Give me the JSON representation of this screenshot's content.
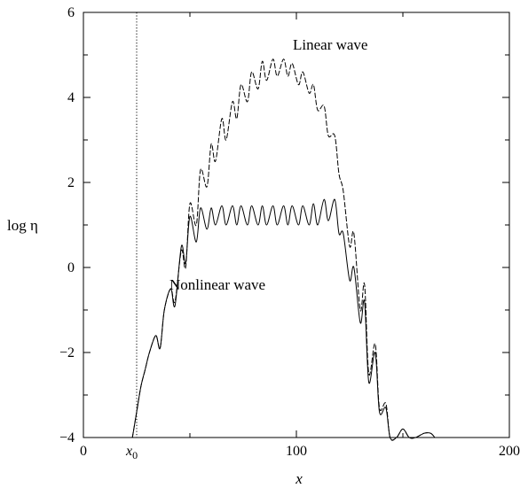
{
  "chart_data": {
    "type": "line",
    "title": "",
    "xlabel": "x",
    "ylabel": "log η",
    "xlim": [
      0,
      200
    ],
    "ylim": [
      -4,
      6
    ],
    "xticks": [
      "0",
      "100",
      "200"
    ],
    "yticks": [
      "−4",
      "−2",
      "0",
      "2",
      "4",
      "6"
    ],
    "x0_marker": {
      "label": "x",
      "subscript": "0",
      "x": 25
    },
    "grid": false,
    "legend": "none",
    "annotations": [
      {
        "text": "Linear wave",
        "series": "linear"
      },
      {
        "text": "Nonlinear wave",
        "series": "nonlinear"
      }
    ],
    "series": [
      {
        "id": "linear",
        "style": "dashed",
        "color": "#000000",
        "x": [
          23,
          25,
          27,
          29,
          31,
          34,
          36,
          38,
          41,
          43,
          46,
          48,
          50,
          53,
          55,
          58,
          60,
          62,
          65,
          67,
          70,
          72,
          74,
          77,
          79,
          82,
          84,
          86,
          89,
          91,
          94,
          96,
          98,
          101,
          103,
          106,
          108,
          110,
          113,
          115,
          118,
          120,
          122,
          125,
          127,
          130,
          132,
          134,
          137,
          139,
          142,
          144,
          147,
          150,
          153,
          156,
          160,
          163,
          165
        ],
        "y": [
          -4.0,
          -3.4,
          -2.8,
          -2.4,
          -2.0,
          -1.6,
          -1.9,
          -1.0,
          -0.5,
          -0.8,
          0.4,
          0.0,
          1.5,
          1.0,
          2.3,
          1.9,
          2.9,
          2.5,
          3.5,
          3.0,
          3.9,
          3.5,
          4.3,
          3.9,
          4.6,
          4.2,
          4.85,
          4.4,
          4.9,
          4.5,
          4.9,
          4.5,
          4.8,
          4.3,
          4.6,
          4.1,
          4.3,
          3.7,
          3.8,
          3.1,
          3.1,
          2.2,
          1.8,
          0.5,
          0.8,
          -1.0,
          -0.4,
          -2.5,
          -1.8,
          -3.3,
          -3.2,
          -4.0,
          -4.0,
          -3.8,
          -4.0,
          -4.0,
          -3.9,
          -3.9,
          -4.0
        ]
      },
      {
        "id": "nonlinear",
        "style": "solid",
        "color": "#000000",
        "x": [
          23,
          25,
          27,
          29,
          31,
          34,
          36,
          38,
          41,
          43,
          46,
          48,
          50,
          53,
          55,
          58,
          60,
          62,
          65,
          67,
          70,
          72,
          74,
          77,
          79,
          82,
          84,
          86,
          89,
          91,
          94,
          96,
          98,
          101,
          103,
          106,
          108,
          110,
          113,
          115,
          118,
          120,
          122,
          125,
          127,
          130,
          132,
          134,
          137,
          139,
          142,
          144,
          147,
          150,
          153,
          156,
          160,
          163,
          165
        ],
        "y": [
          -4.0,
          -3.4,
          -2.8,
          -2.4,
          -2.0,
          -1.6,
          -1.9,
          -1.0,
          -0.5,
          -0.9,
          0.5,
          0.1,
          1.2,
          0.6,
          1.4,
          0.9,
          1.4,
          1.0,
          1.45,
          1.0,
          1.45,
          1.0,
          1.45,
          1.0,
          1.45,
          1.0,
          1.45,
          1.0,
          1.45,
          1.0,
          1.45,
          1.0,
          1.45,
          1.0,
          1.45,
          1.0,
          1.5,
          1.0,
          1.6,
          1.1,
          1.6,
          0.8,
          0.8,
          -0.3,
          0.0,
          -1.3,
          -0.8,
          -2.7,
          -2.0,
          -3.4,
          -3.3,
          -4.0,
          -4.0,
          -3.8,
          -4.0,
          -4.0,
          -3.9,
          -3.9,
          -4.0
        ]
      }
    ]
  }
}
